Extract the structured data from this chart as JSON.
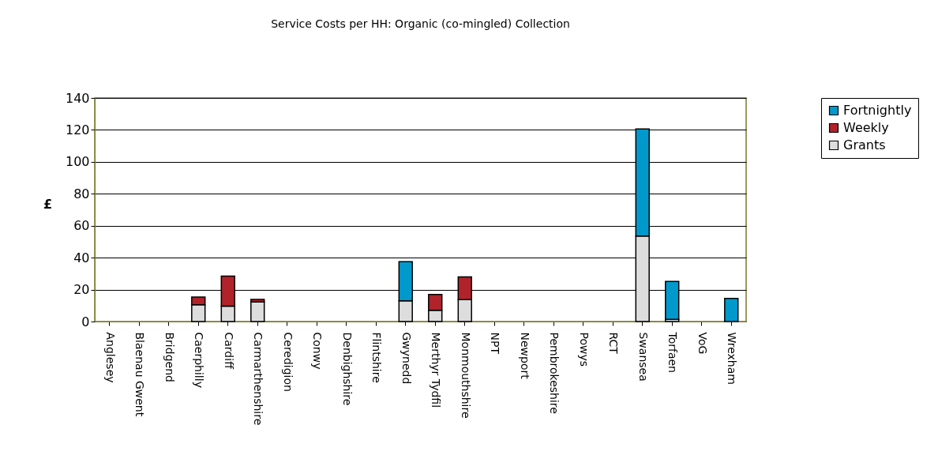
{
  "chart_data": {
    "type": "bar",
    "title": "Service Costs per HH: Organic (co-mingled) Collection",
    "ylabel": "£",
    "categories": [
      "Anglesey",
      "Blaenau Gwent",
      "Bridgend",
      "Caerphilly",
      "Cardiff",
      "Carmarthenshire",
      "Ceredigion",
      "Conwy",
      "Denbighshire",
      "Flintshire",
      "Gwynedd",
      "Merthyr Tydfil",
      "Monmouthshire",
      "NPT",
      "Newport",
      "Pembrokeshire",
      "Powys",
      "RCT",
      "Swansea",
      "Torfaen",
      "VoG",
      "Wrexham"
    ],
    "stacked": true,
    "series": [
      {
        "name": "Grants",
        "color": "#dddddd",
        "values": [
          null,
          null,
          null,
          10.5,
          9.6,
          12.2,
          null,
          null,
          null,
          null,
          13.0,
          7.1,
          13.7,
          null,
          null,
          null,
          null,
          null,
          53.6,
          1.3,
          null,
          null
        ]
      },
      {
        "name": "Weekly",
        "color": "#b0232a",
        "values": [
          null,
          null,
          null,
          4.8,
          18.9,
          1.7,
          null,
          null,
          null,
          null,
          null,
          9.9,
          14.2,
          null,
          null,
          null,
          null,
          null,
          null,
          null,
          null,
          null
        ]
      },
      {
        "name": "Fortnightly",
        "color": "#0099cc",
        "values": [
          null,
          null,
          null,
          null,
          null,
          null,
          null,
          null,
          null,
          null,
          24.5,
          null,
          null,
          null,
          null,
          null,
          null,
          null,
          67.0,
          23.8,
          null,
          14.5
        ]
      }
    ],
    "ylim": [
      0,
      140
    ],
    "yticks": [
      0,
      20,
      40,
      60,
      80,
      100,
      120,
      140
    ],
    "grid": "y",
    "legend": "right"
  }
}
